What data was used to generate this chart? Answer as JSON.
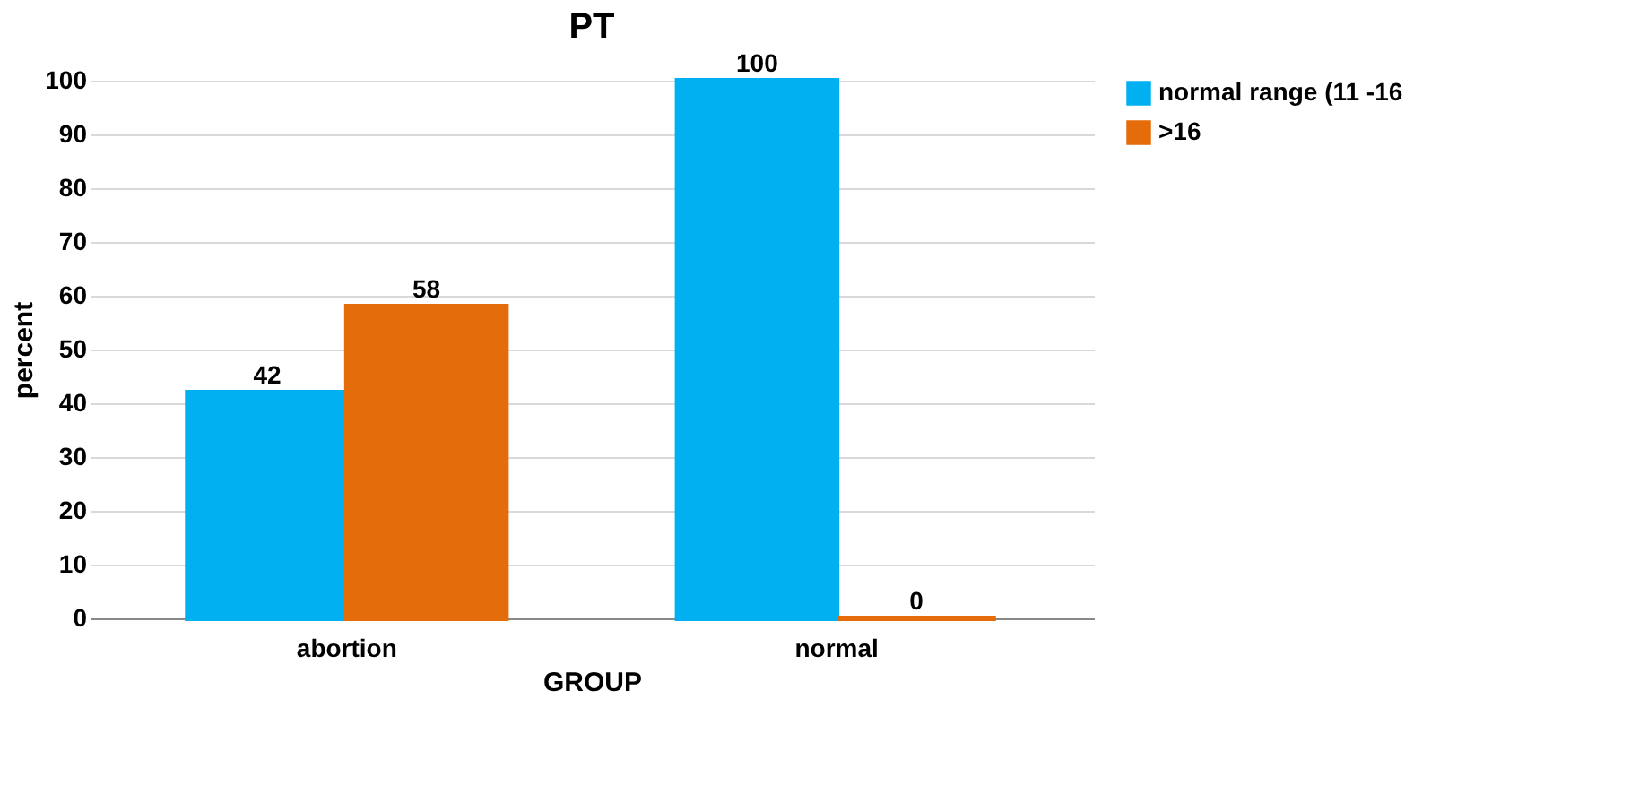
{
  "chart_data": {
    "type": "bar",
    "title": "PT",
    "xlabel": "GROUP",
    "ylabel": "percent",
    "categories": [
      "abortion",
      "normal"
    ],
    "series": [
      {
        "name": "normal range (11 -16",
        "color": "#00b0f0",
        "values": [
          42,
          100
        ]
      },
      {
        "name": ">16",
        "color": "#e46c0a",
        "values": [
          58,
          0
        ]
      }
    ],
    "ylim": [
      0,
      100
    ],
    "yticks": [
      0,
      10,
      20,
      30,
      40,
      50,
      60,
      70,
      80,
      90,
      100
    ],
    "grid": "y",
    "legend": "right",
    "data_labels": true
  }
}
